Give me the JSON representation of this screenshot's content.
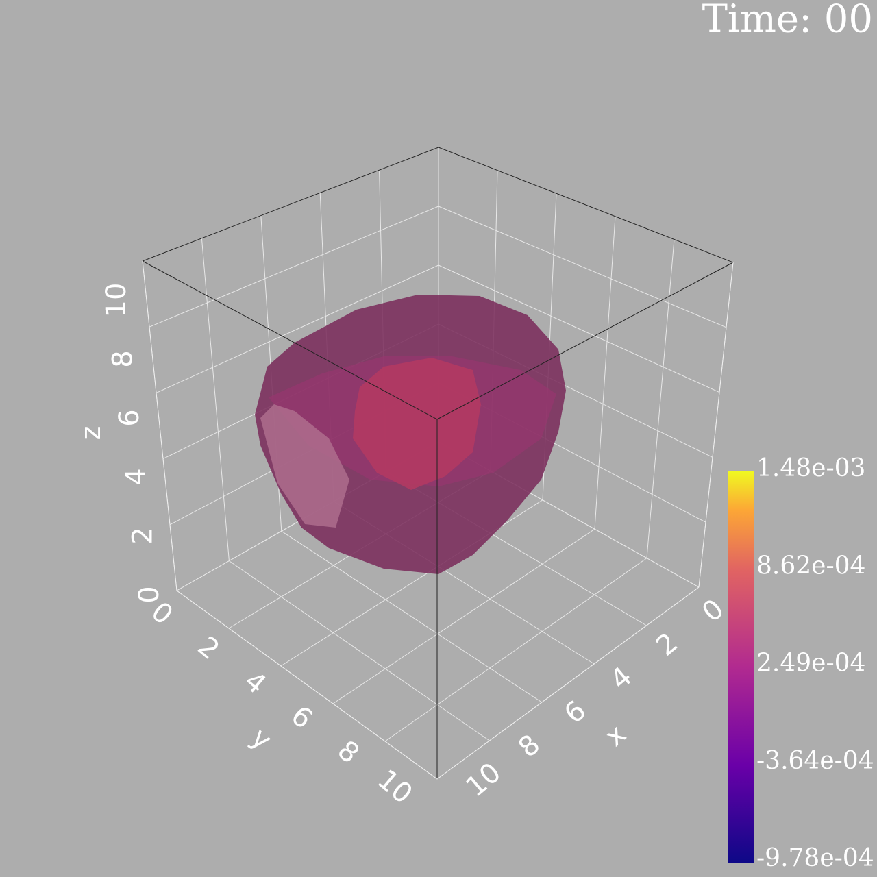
{
  "time_label": "Time: 00",
  "axes": {
    "x": {
      "label": "x",
      "ticks": [
        0,
        2,
        4,
        6,
        8,
        10
      ]
    },
    "y": {
      "label": "y",
      "ticks": [
        0,
        2,
        4,
        6,
        8,
        10
      ]
    },
    "z": {
      "label": "z",
      "ticks": [
        0,
        2,
        4,
        6,
        8,
        10
      ]
    }
  },
  "colorbar": {
    "labels": [
      "1.48e-03",
      "8.62e-04",
      "2.49e-04",
      "-3.64e-04",
      "-9.78e-04"
    ]
  }
}
